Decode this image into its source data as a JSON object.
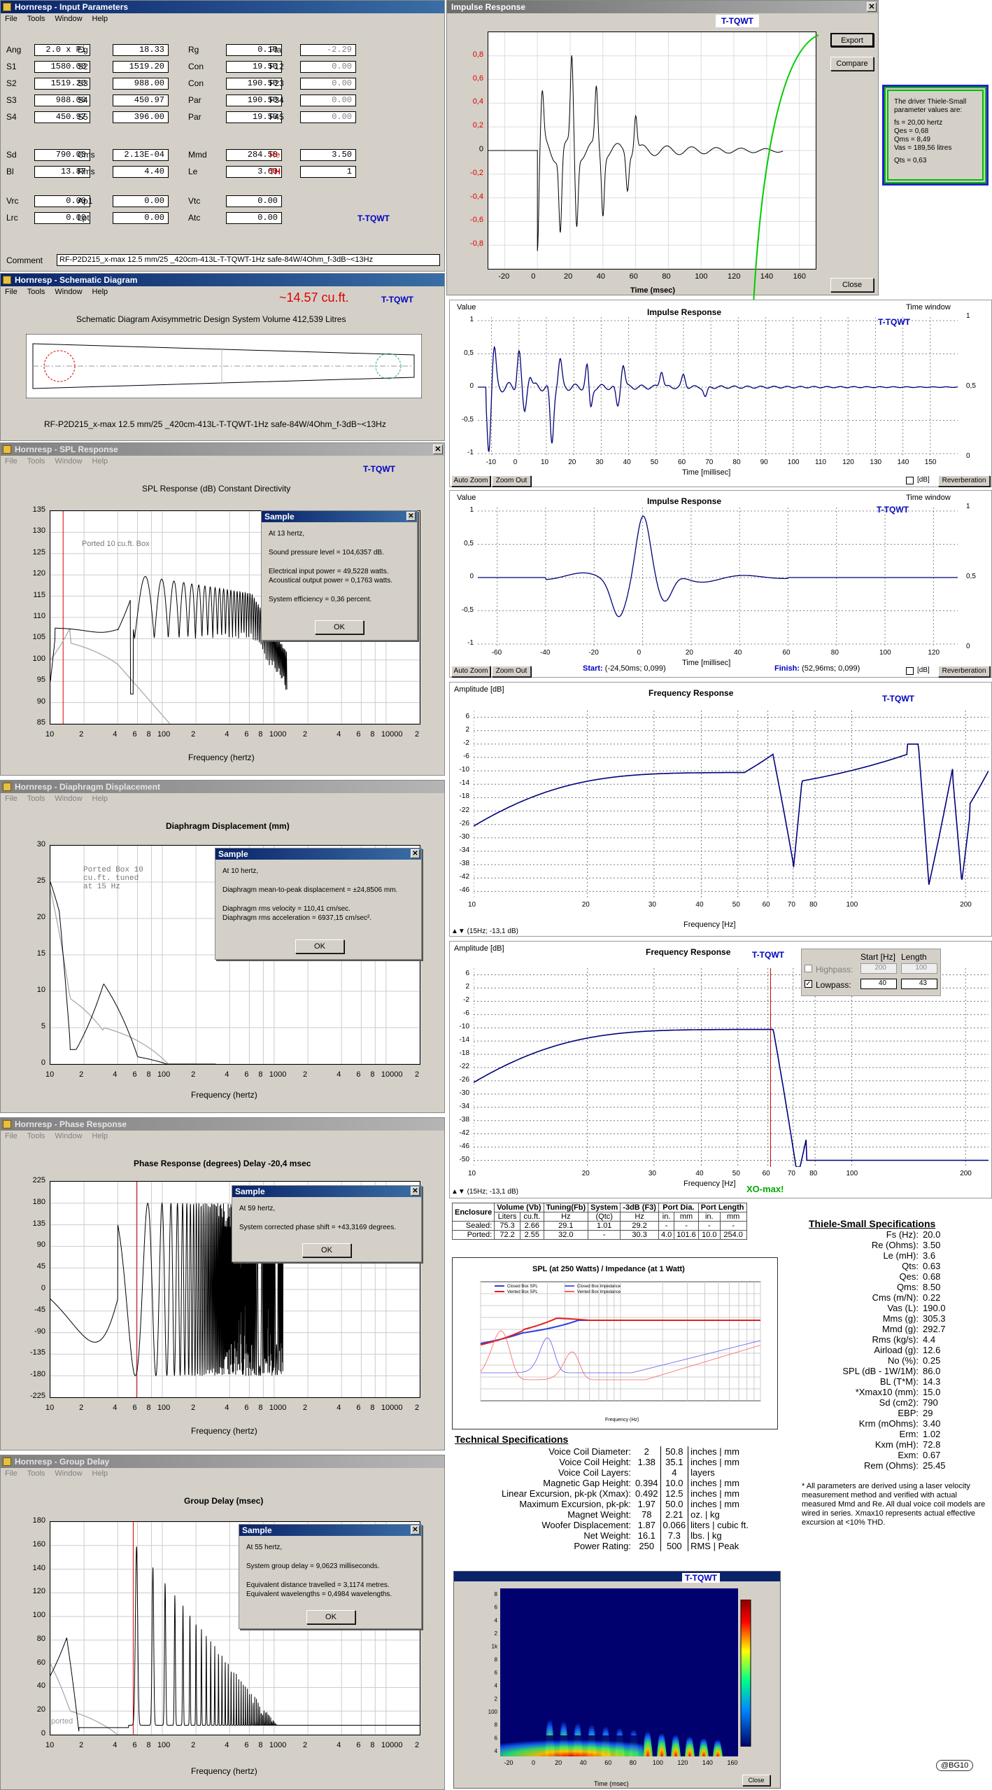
{
  "input_params": {
    "title": "Hornresp - Input Parameters",
    "menu": [
      "File",
      "Tools",
      "Window",
      "Help"
    ],
    "rows": [
      [
        [
          "Ang",
          "2.0 x Pi"
        ],
        [
          "Eg",
          "18.33"
        ],
        [
          "Rg",
          "0.10"
        ],
        [
          "Fta",
          "-2.29"
        ]
      ],
      [
        [
          "S1",
          "1580.00"
        ],
        [
          "S2",
          "1519.20"
        ],
        [
          "Con",
          "19.50"
        ],
        [
          "F12",
          "0.00"
        ]
      ],
      [
        [
          "S2",
          "1519.20"
        ],
        [
          "S3",
          "988.00"
        ],
        [
          "Con",
          "190.50"
        ],
        [
          "F23",
          "0.00"
        ]
      ],
      [
        [
          "S3",
          "988.00"
        ],
        [
          "S4",
          "450.97"
        ],
        [
          "Par",
          "190.50"
        ],
        [
          "F34",
          "0.00"
        ]
      ],
      [
        [
          "S4",
          "450.97"
        ],
        [
          "S5",
          "396.00"
        ],
        [
          "Par",
          "19.50"
        ],
        [
          "F45",
          "0.00"
        ]
      ],
      [
        [
          "Sd",
          "790.00"
        ],
        [
          "Cms",
          "2.13E-04"
        ],
        [
          "Mmd",
          "284.50"
        ],
        [
          "Re",
          "3.50"
        ]
      ],
      [
        [
          "Bl",
          "13.87"
        ],
        [
          "Rms",
          "4.40"
        ],
        [
          "Le",
          "3.60"
        ],
        [
          "TH",
          "1"
        ]
      ],
      [
        [
          "Vrc",
          "0.00"
        ],
        [
          "Ap1",
          "0.00"
        ],
        [
          "Vtc",
          "0.00"
        ]
      ],
      [
        [
          "Lrc",
          "0.00"
        ],
        [
          "Lpt",
          "0.00"
        ],
        [
          "Atc",
          "0.00"
        ]
      ]
    ],
    "tag": "T-TQWT",
    "comment_label": "Comment",
    "comment": "RF-P2D215_x-max 12.5 mm/25 _420cm-413L-T-TQWT-1Hz safe-84W/4Ohm_f-3dB~<13Hz"
  },
  "schematic": {
    "title": "Hornresp - Schematic Diagram",
    "menu": [
      "File",
      "Tools",
      "Window",
      "Help"
    ],
    "volume_note": "~14.57 cu.ft.",
    "tag": "T-TQWT",
    "header": "Schematic Diagram   Axisymmetric Design   System Volume 412,539 Litres",
    "caption": "RF-P2D215_x-max 12.5 mm/25 _420cm-413L-T-TQWT-1Hz safe-84W/4Ohm_f-3dB~<13Hz"
  },
  "spl": {
    "title": "Hornresp - SPL Response",
    "menu": [
      "File",
      "Tools",
      "Window",
      "Help"
    ],
    "tag": "T-TQWT",
    "header": "SPL Response (dB)   Constant Directivity",
    "yticks": [
      "135",
      "130",
      "125",
      "120",
      "115",
      "110",
      "105",
      "100",
      "95",
      "90",
      "85"
    ],
    "xticks": [
      "10",
      "2",
      "4",
      "6",
      "8",
      "100",
      "2",
      "4",
      "6",
      "8",
      "1000",
      "2",
      "4",
      "6",
      "8",
      "10000",
      "2"
    ],
    "xlabel": "Frequency (hertz)",
    "legend": "Ported 10 cu.ft. Box",
    "dialog": {
      "title": "Sample",
      "lines": [
        "At 13 hertz,",
        "Sound pressure level = 104,6357 dB.",
        "Electrical input power = 49,5228 watts.",
        "Acoustical output power = 0,1763 watts.",
        "System efficiency = 0,36 percent."
      ],
      "ok": "OK"
    }
  },
  "disp": {
    "title": "Hornresp - Diaphragm Displacement",
    "menu": [
      "File",
      "Tools",
      "Window",
      "Help"
    ],
    "header": "Diaphragm Displacement (mm)",
    "yticks": [
      "30",
      "25",
      "20",
      "15",
      "10",
      "5",
      "0"
    ],
    "xticks": [
      "10",
      "2",
      "4",
      "6",
      "8",
      "100",
      "2",
      "4",
      "6",
      "8",
      "1000",
      "2",
      "4",
      "6",
      "8",
      "10000",
      "2"
    ],
    "xlabel": "Frequency (hertz)",
    "annotation": "Ported Box 10 cu.ft. tuned at 15 Hz",
    "dialog": {
      "title": "Sample",
      "lines": [
        "At 10 hertz,",
        "Diaphragm mean-to-peak displacement = ±24,8506 mm.",
        "Diaphragm rms velocity = 110,41 cm/sec.",
        "Diaphragm rms acceleration = 6937,15 cm/sec²."
      ],
      "ok": "OK"
    }
  },
  "phase": {
    "title": "Hornresp - Phase Response",
    "menu": [
      "File",
      "Tools",
      "Window",
      "Help"
    ],
    "header": "Phase Response (degrees)   Delay -20,4 msec",
    "yticks": [
      "225",
      "180",
      "135",
      "90",
      "45",
      "0",
      "-45",
      "-90",
      "-135",
      "-180",
      "-225"
    ],
    "xticks": [
      "10",
      "2",
      "4",
      "6",
      "8",
      "100",
      "2",
      "4",
      "6",
      "8",
      "1000",
      "2",
      "4",
      "6",
      "8",
      "10000",
      "2"
    ],
    "xlabel": "Frequency (hertz)",
    "dialog": {
      "title": "Sample",
      "lines": [
        "At 59 hertz,",
        "System corrected phase shift = +43,3169 degrees."
      ],
      "ok": "OK"
    }
  },
  "gd": {
    "title": "Hornresp - Group Delay",
    "menu": [
      "File",
      "Tools",
      "Window",
      "Help"
    ],
    "header": "Group Delay (msec)",
    "yticks": [
      "180",
      "160",
      "140",
      "120",
      "100",
      "80",
      "60",
      "40",
      "20",
      "0"
    ],
    "xticks": [
      "10",
      "2",
      "4",
      "6",
      "8",
      "100",
      "2",
      "4",
      "6",
      "8",
      "1000",
      "2",
      "4",
      "6",
      "8",
      "10000",
      "2"
    ],
    "xlabel": "Frequency (hertz)",
    "annotation": "ported",
    "dialog": {
      "title": "Sample",
      "lines": [
        "At 55 hertz,",
        "System group delay = 9,0623 milliseconds.",
        "Equivalent distance travelled = 3,1174 metres.",
        "Equivalent wavelengths = 0,4984 wavelengths."
      ],
      "ok": "OK"
    }
  },
  "impulse_win": {
    "title": "Impulse Response",
    "tag": "T-TQWT",
    "export": "Export",
    "compare": "Compare",
    "close": "Close",
    "yticks": [
      "0,8",
      "0,6",
      "0,4",
      "0,2",
      "0",
      "-0,2",
      "-0,4",
      "-0,6",
      "-0,8"
    ],
    "xticks": [
      "-20",
      "0",
      "20",
      "40",
      "60",
      "80",
      "100",
      "120",
      "140",
      "160"
    ],
    "xlabel": "Time (msec)"
  },
  "ts_box": {
    "lines": [
      "The driver Thiele-Small",
      "parameter values are:",
      "",
      "fs = 20,00 hertz",
      "Qes = 0,68",
      "Qms = 8,49",
      "Vas = 189,56 litres",
      "",
      "Qts = 0,63"
    ]
  },
  "arta1": {
    "value_label": "Value",
    "title": "Impulse Response",
    "window_label": "Time window",
    "tag": "T-TQWT",
    "yticks": [
      "1",
      "0,5",
      "0",
      "-0,5",
      "-1"
    ],
    "ryticks": [
      "1",
      "0,5",
      "0"
    ],
    "xticks": [
      "-10",
      "0",
      "10",
      "20",
      "30",
      "40",
      "50",
      "60",
      "70",
      "80",
      "90",
      "100",
      "110",
      "120",
      "130",
      "140",
      "150"
    ],
    "xlabel": "Time [millisec]",
    "btn1": "Auto Zoom",
    "btn2": "Zoom Out",
    "db": "[dB]",
    "rev": "Reverberation"
  },
  "arta2": {
    "value_label": "Value",
    "title": "Impulse Response",
    "window_label": "Time window",
    "tag": "T-TQWT",
    "yticks": [
      "1",
      "0,5",
      "0",
      "-0,5",
      "-1"
    ],
    "ryticks": [
      "1",
      "0,5",
      "0"
    ],
    "xticks": [
      "-60",
      "-40",
      "-20",
      "0",
      "20",
      "40",
      "60",
      "80",
      "100",
      "120"
    ],
    "xlabel": "Time [millisec]",
    "btn1": "Auto Zoom",
    "btn2": "Zoom Out",
    "db": "[dB]",
    "rev": "Reverberation",
    "start_label": "Start:",
    "start_val": "(-24,50ms; 0,099)",
    "finish_label": "Finish:",
    "finish_val": "(52,96ms; 0,099)"
  },
  "fr1": {
    "amp_label": "Amplitude [dB]",
    "title": "Frequency Response",
    "tag": "T-TQWT",
    "yticks": [
      "6",
      "2",
      "-2",
      "-6",
      "-10",
      "-14",
      "-18",
      "-22",
      "-26",
      "-30",
      "-34",
      "-38",
      "-42",
      "-46"
    ],
    "xticks": [
      "10",
      "20",
      "30",
      "40",
      "50",
      "60",
      "70",
      "80",
      "100",
      "200"
    ],
    "xlabel": "Frequency [Hz]",
    "status": "(15Hz; -13,1 dB)"
  },
  "fr2": {
    "amp_label": "Amplitude [dB]",
    "title": "Frequency Response",
    "tag": "T-TQWT",
    "yticks": [
      "6",
      "2",
      "-2",
      "-6",
      "-10",
      "-14",
      "-18",
      "-22",
      "-26",
      "-30",
      "-34",
      "-38",
      "-42",
      "-46",
      "-50"
    ],
    "xticks": [
      "10",
      "20",
      "30",
      "40",
      "50",
      "60",
      "70",
      "80",
      "100",
      "200"
    ],
    "xlabel": "Frequency [Hz]",
    "status": "(15Hz; -13,1 dB)",
    "start_hdr": "Start [Hz]",
    "len_hdr": "Length [Hz]",
    "highpass": "Highpass:",
    "lowpass": "Lowpass:",
    "hp_start": "200",
    "hp_len": "100",
    "lp_start": "40",
    "lp_len": "43",
    "xo": "XO-max!"
  },
  "enclosure": {
    "headers": [
      "Enclosure",
      "Volume (Vb)",
      "Tuning(Fb)",
      "System",
      "-3dB (F3)",
      "Port Dia.",
      "Port Length"
    ],
    "sub": [
      "",
      "Liters",
      "cu.ft.",
      "Hz",
      "(Qtc)",
      "Hz",
      "in.",
      "mm",
      "in.",
      "mm"
    ],
    "rows": [
      [
        "Sealed:",
        "75.3",
        "2.66",
        "29.1",
        "1.01",
        "29.2",
        "-",
        "-",
        "-",
        "-"
      ],
      [
        "Ported:",
        "72.2",
        "2.55",
        "32.0",
        "-",
        "30.3",
        "4.0",
        "101.6",
        "10.0",
        "254.0"
      ]
    ]
  },
  "splimp": {
    "title": "SPL (at 250 Watts) / Impedance (at 1 Watt)",
    "legend": [
      "Closed Box SPL",
      "Closed Box Impedance",
      "Vented Box SPL",
      "Vented Box Impedance"
    ],
    "xlabel": "Frequency (Hz)"
  },
  "tech": {
    "title": "Technical Specifications",
    "rows": [
      [
        "Voice Coil Diameter:",
        "2",
        "50.8",
        "inches | mm"
      ],
      [
        "Voice Coil Height:",
        "1.38",
        "35.1",
        "inches | mm"
      ],
      [
        "Voice Coil Layers:",
        "",
        "4",
        "layers"
      ],
      [
        "Magnetic Gap Height:",
        "0.394",
        "10.0",
        "inches | mm"
      ],
      [
        "Linear Excursion, pk-pk (Xmax):",
        "0.492",
        "12.5",
        "inches | mm"
      ],
      [
        "Maximum Excursion, pk-pk:",
        "1.97",
        "50.0",
        "inches | mm"
      ],
      [
        "Magnet Weight:",
        "78",
        "2.21",
        "oz. | kg"
      ],
      [
        "Woofer Displacement:",
        "1.87",
        "0.066",
        "liters | cubic ft."
      ],
      [
        "Net Weight:",
        "16.1",
        "7.3",
        "lbs. | kg"
      ],
      [
        "Power Rating:",
        "250",
        "500",
        "RMS | Peak"
      ]
    ]
  },
  "tsspec": {
    "title": "Thiele-Small Specifications",
    "rows": [
      [
        "Fs (Hz):",
        "20.0"
      ],
      [
        "Re (Ohms):",
        "3.50"
      ],
      [
        "Le (mH):",
        "3.6"
      ],
      [
        "Qts:",
        "0.63"
      ],
      [
        "Qes:",
        "0.68"
      ],
      [
        "Qms:",
        "8.50"
      ],
      [
        "Cms (m/N):",
        "0.22"
      ],
      [
        "Vas (L):",
        "190.0"
      ],
      [
        "Mms (g):",
        "305.3"
      ],
      [
        "Mmd (g):",
        "292.7"
      ],
      [
        "Rms (kg/s):",
        "4.4"
      ],
      [
        "Airload (g):",
        "12.6"
      ],
      [
        "No (%):",
        "0.25"
      ],
      [
        "SPL (dB - 1W/1M):",
        "86.0"
      ],
      [
        "BL (T*M):",
        "14.3"
      ],
      [
        "*Xmax10 (mm):",
        "15.0"
      ],
      [
        "Sd (cm2):",
        "790"
      ],
      [
        "EBP:",
        "29"
      ],
      [
        "Krm (mOhms):",
        "3.40"
      ],
      [
        "Erm:",
        "1.02"
      ],
      [
        "Kxm (mH):",
        "72.8"
      ],
      [
        "Exm:",
        "0.67"
      ],
      [
        "Rem (Ohms):",
        "25.45"
      ]
    ],
    "note": "* All parameters are derived using a laser velocity measurement method and verified with actual measured Mmd and Re. All dual voice coil models are wired in series.  Xmax10 represents actual effective excursion at <10% THD."
  },
  "spectro": {
    "tag": "T-TQWT",
    "xticks": [
      "-20",
      "0",
      "20",
      "40",
      "60",
      "80",
      "100",
      "120",
      "140",
      "160"
    ],
    "xlabel": "Time (msec)",
    "yticks": [
      "8",
      "6",
      "4",
      "2",
      "1k",
      "8",
      "6",
      "4",
      "2",
      "100",
      "8",
      "6",
      "4"
    ],
    "btn": "Close"
  },
  "footer": {
    "badge": "@BG10"
  }
}
